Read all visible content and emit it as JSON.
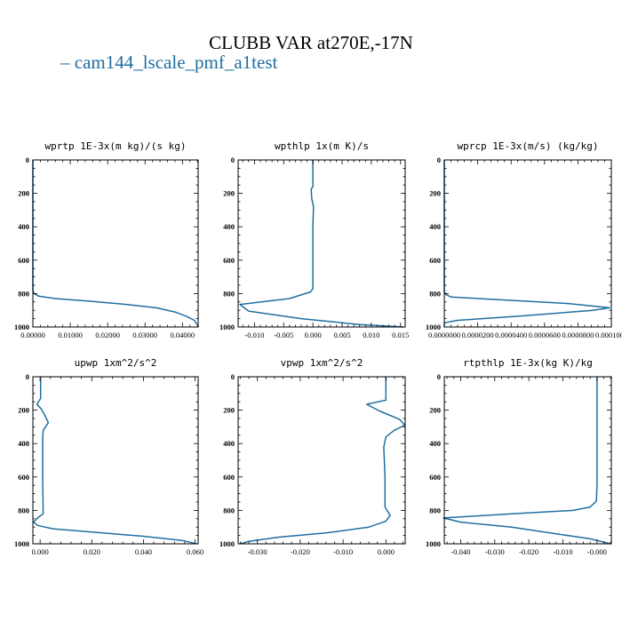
{
  "title": "CLUBB VAR at270E,-17N",
  "legend": {
    "label": "cam144_lscale_pmf_a1test",
    "color": "#1f6fa0"
  },
  "chart_data": [
    {
      "type": "line",
      "title": "wprtp  1E-3x(m kg)/(s kg)",
      "xlim": [
        0,
        0.0442
      ],
      "ylim": [
        0,
        1000
      ],
      "yinverted": true,
      "xticks": [
        0,
        0.01,
        0.02,
        0.03,
        0.04
      ],
      "xtick_labels": [
        "0.00000",
        "0.01000",
        "0.02000",
        "0.03000",
        "0.04000"
      ],
      "yticks": [
        0,
        200,
        400,
        600,
        800,
        1000
      ],
      "ytick_labels": [
        "0",
        "200",
        "400",
        "600",
        "800",
        "1000"
      ],
      "series": [
        {
          "color": "#1f6fa0",
          "x": [
            0,
            0,
            0.0003,
            0.0015,
            0.006,
            0.015,
            0.025,
            0.033,
            0.038,
            0.041,
            0.0432,
            0.0439
          ],
          "y": [
            0,
            780,
            800,
            815,
            830,
            845,
            865,
            885,
            910,
            935,
            960,
            985
          ]
        }
      ]
    },
    {
      "type": "line",
      "title": "wpthlp  1x(m K)/s",
      "xlim": [
        -0.0128,
        0.0158
      ],
      "ylim": [
        0,
        1000
      ],
      "yinverted": true,
      "xticks": [
        -0.01,
        -0.005,
        0,
        0.005,
        0.01,
        0.015
      ],
      "xtick_labels": [
        "-0.010",
        "-0.005",
        "0.000",
        "0.005",
        "0.010",
        "0.015"
      ],
      "yticks": [
        0,
        200,
        400,
        600,
        800,
        1000
      ],
      "ytick_labels": [
        "0",
        "200",
        "400",
        "600",
        "800",
        "1000"
      ],
      "series": [
        {
          "color": "#1f6fa0",
          "x": [
            0,
            0,
            -0.0003,
            -0.0002,
            0.0001,
            0,
            0,
            -0.0004,
            -0.004,
            -0.0125,
            -0.011,
            -0.002,
            0.008,
            0.0155
          ],
          "y": [
            0,
            160,
            175,
            230,
            280,
            400,
            770,
            790,
            830,
            865,
            905,
            950,
            985,
            1000
          ]
        }
      ]
    },
    {
      "type": "line",
      "title": "wprcp  1E-3x(m/s) (kg/kg)",
      "xlim": [
        0,
        0.0001
      ],
      "ylim": [
        0,
        1000
      ],
      "yinverted": true,
      "xticks": [
        0,
        2e-05,
        4e-05,
        6e-05,
        8e-05,
        0.0001
      ],
      "xtick_labels": [
        "0.0000000",
        "0.0000200",
        "0.0000400",
        "0.0000600",
        "0.0000800",
        "0.0001000"
      ],
      "yticks": [
        0,
        200,
        400,
        600,
        800,
        1000
      ],
      "ytick_labels": [
        "0",
        "200",
        "400",
        "600",
        "800",
        "1000"
      ],
      "series": [
        {
          "color": "#1f6fa0",
          "x": [
            0,
            0,
            8e-07,
            4e-06,
            3e-05,
            7.5e-05,
            9.9e-05,
            8.9e-05,
            4.5e-05,
            8e-06,
            0,
            0
          ],
          "y": [
            0,
            785,
            805,
            820,
            835,
            860,
            885,
            900,
            935,
            960,
            975,
            1000
          ]
        }
      ]
    },
    {
      "type": "line",
      "title": "upwp  1xm^2/s^2",
      "xlim": [
        -0.0028,
        0.0612
      ],
      "ylim": [
        0,
        1000
      ],
      "yinverted": true,
      "xticks": [
        0,
        0.02,
        0.04,
        0.06
      ],
      "xtick_labels": [
        "0.000",
        "0.020",
        "0.040",
        "0.060"
      ],
      "yticks": [
        0,
        200,
        400,
        600,
        800,
        1000
      ],
      "ytick_labels": [
        "0",
        "200",
        "400",
        "600",
        "800",
        "1000"
      ],
      "series": [
        {
          "color": "#1f6fa0",
          "x": [
            0.0002,
            0.0002,
            -0.0012,
            0.0003,
            0.0018,
            0.0032,
            0.0012,
            0.001,
            0.001,
            0.0012,
            -0.001,
            -0.0025,
            -0.001,
            0.005,
            0.02,
            0.04,
            0.055,
            0.0605
          ],
          "y": [
            0,
            130,
            165,
            190,
            230,
            275,
            320,
            380,
            600,
            820,
            845,
            870,
            890,
            910,
            930,
            955,
            980,
            1000
          ]
        }
      ]
    },
    {
      "type": "line",
      "title": "vpwp  1xm^2/s^2",
      "xlim": [
        -0.0345,
        0.0045
      ],
      "ylim": [
        0,
        1000
      ],
      "yinverted": true,
      "xticks": [
        -0.03,
        -0.02,
        -0.01,
        0
      ],
      "xtick_labels": [
        "-0.030",
        "-0.020",
        "-0.010",
        "0.000"
      ],
      "yticks": [
        0,
        200,
        400,
        600,
        800,
        1000
      ],
      "ytick_labels": [
        "0",
        "200",
        "400",
        "600",
        "800",
        "1000"
      ],
      "series": [
        {
          "color": "#1f6fa0",
          "x": [
            0,
            0,
            -0.0045,
            -0.0015,
            0.0032,
            0.0044,
            0.002,
            0,
            -0.0005,
            -0.0002,
            -0.0002,
            0.001,
            0,
            -0.004,
            -0.014,
            -0.025,
            -0.032,
            -0.034
          ],
          "y": [
            0,
            140,
            165,
            205,
            255,
            290,
            320,
            360,
            420,
            600,
            780,
            830,
            865,
            900,
            935,
            960,
            985,
            1000
          ]
        }
      ]
    },
    {
      "type": "line",
      "title": "rtpthlp  1E-3x(kg K)/kg",
      "xlim": [
        -0.0448,
        0.0042
      ],
      "ylim": [
        0,
        1000
      ],
      "yinverted": true,
      "xticks": [
        -0.04,
        -0.03,
        -0.02,
        -0.01,
        0
      ],
      "xtick_labels": [
        "-0.040",
        "-0.030",
        "-0.020",
        "-0.010",
        "-0.000"
      ],
      "yticks": [
        0,
        200,
        400,
        600,
        800,
        1000
      ],
      "ytick_labels": [
        "0",
        "200",
        "400",
        "600",
        "800",
        "1000"
      ],
      "series": [
        {
          "color": "#1f6fa0",
          "x": [
            0,
            0,
            -0.0002,
            -0.002,
            -0.007,
            -0.025,
            -0.045,
            -0.04,
            -0.025,
            -0.012,
            -0.002,
            0.002,
            0.004
          ],
          "y": [
            0,
            650,
            745,
            780,
            800,
            820,
            845,
            870,
            900,
            940,
            970,
            990,
            1000
          ]
        }
      ]
    }
  ]
}
